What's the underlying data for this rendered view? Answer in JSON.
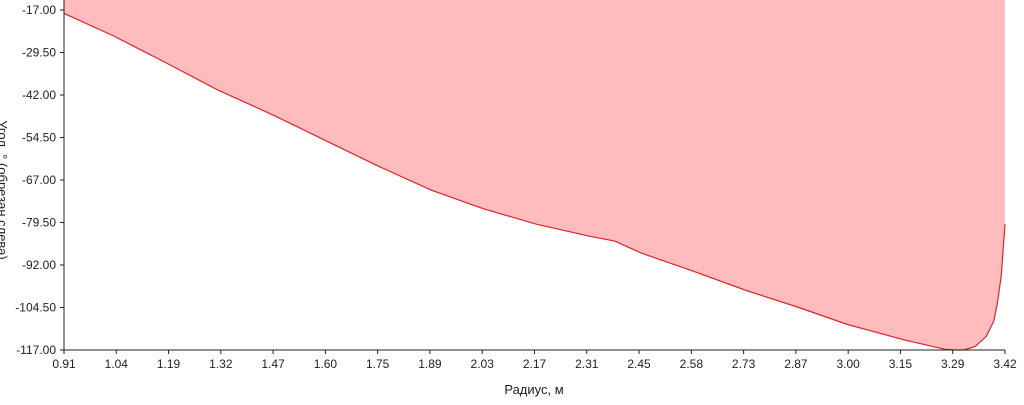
{
  "chart_data": {
    "type": "area",
    "title": "",
    "xlabel": "Радиус, м",
    "ylabel": "Угол, ° (обрезан слева)",
    "xlim": [
      0.91,
      3.42
    ],
    "ylim": [
      -117.0,
      -17.0
    ],
    "x_ticks": [
      "0.91",
      "1.04",
      "1.19",
      "1.32",
      "1.47",
      "1.60",
      "1.75",
      "1.89",
      "2.03",
      "2.17",
      "2.31",
      "2.45",
      "2.58",
      "2.73",
      "2.87",
      "3.00",
      "3.15",
      "3.29",
      "3.42"
    ],
    "y_ticks": [
      "-17.00",
      "-29.50",
      "-42.00",
      "-54.50",
      "-67.00",
      "-79.50",
      "-92.00",
      "-104.50",
      "-117.00"
    ],
    "grid": false,
    "colors": {
      "line": "#e0242a",
      "fill": "#ffbcbf",
      "axis": "#222222"
    },
    "series": [
      {
        "x": [
          0.91,
          1.04,
          1.19,
          1.32,
          1.47,
          1.6,
          1.75,
          1.89,
          2.03,
          2.17,
          2.31,
          2.38,
          2.45,
          2.58,
          2.73,
          2.87,
          3.0,
          3.15,
          3.26,
          3.29,
          3.31,
          3.34,
          3.37,
          3.39,
          3.4,
          3.41,
          3.42
        ],
        "values": [
          -18.0,
          -24.5,
          -33.0,
          -40.5,
          -48.0,
          -55.0,
          -63.0,
          -70.0,
          -75.5,
          -80.0,
          -83.5,
          -85.0,
          -88.5,
          -93.5,
          -99.5,
          -104.5,
          -109.5,
          -114.0,
          -116.8,
          -117.0,
          -117.0,
          -116.0,
          -113.0,
          -108.5,
          -103.0,
          -95.0,
          -80.0
        ]
      }
    ]
  }
}
